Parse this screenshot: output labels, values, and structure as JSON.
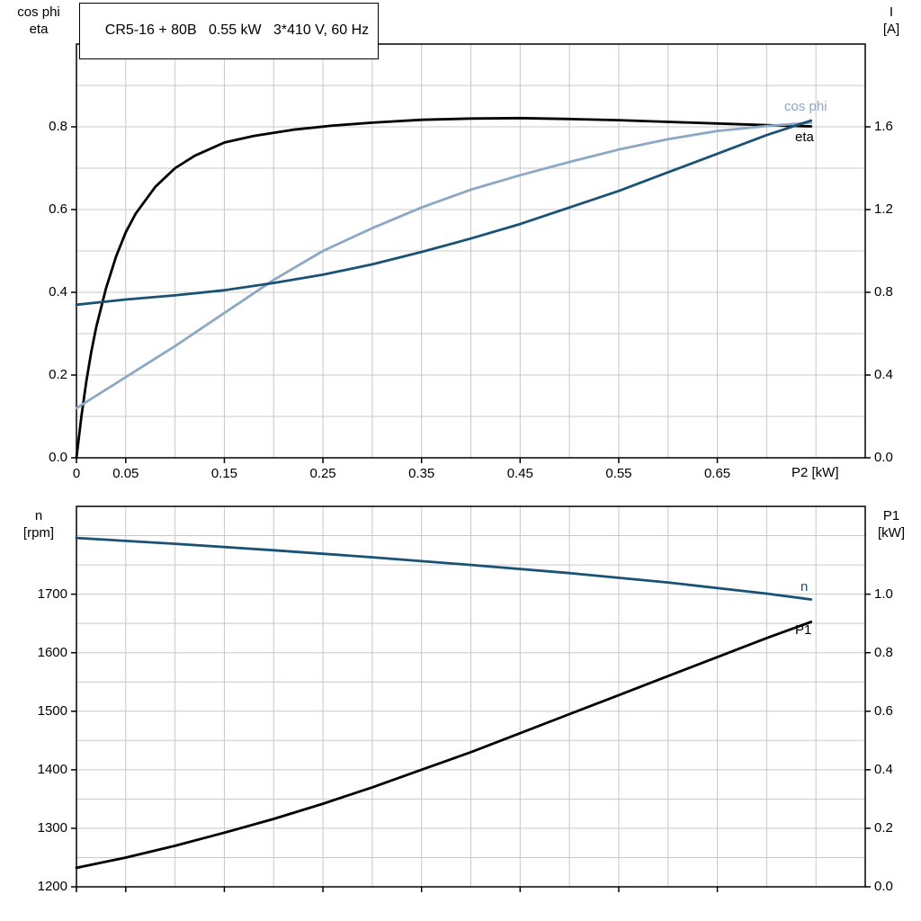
{
  "colors": {
    "background": "#ffffff",
    "axis": "#000000",
    "grid": "#c8c8c8",
    "text": "#000000",
    "black_curve": "#000000",
    "dark_blue": "#1a5276",
    "light_blue": "#8ca8c5"
  },
  "title_box": {
    "text": "CR5-16 + 80B   0.55 kW   3*410 V, 60 Hz"
  },
  "axis_titles": {
    "top_left_line1": "cos phi",
    "top_left_line2": "eta",
    "top_right_line1": "I",
    "top_right_line2": "[A]",
    "bottom_left_line1": "n",
    "bottom_left_line2": "[rpm]",
    "bottom_right_line1": "P1",
    "bottom_right_line2": "[kW]",
    "x_label": "P2 [kW]"
  },
  "curve_labels": {
    "cos_phi": "cos phi",
    "eta": "eta",
    "n": "n",
    "p1": "P1"
  },
  "chart_data": [
    {
      "type": "line",
      "title": "CR5-16 + 80B   0.55 kW   3*410 V, 60 Hz",
      "xlabel": "P2 [kW]",
      "ylabel_left": "cos phi / eta",
      "ylabel_right": "I [A]",
      "xlim": [
        0,
        0.8
      ],
      "ylim_left": [
        0,
        1.0
      ],
      "ylim_right": [
        0,
        2.0
      ],
      "grid": {
        "x_step": 0.05,
        "y_step_left": 0.1
      },
      "x_ticks": [
        0,
        0.05,
        0.15,
        0.25,
        0.35,
        0.45,
        0.55,
        0.65
      ],
      "x_tick_labels": [
        "0",
        "0.05",
        "0.15",
        "0.25",
        "0.35",
        "0.45",
        "0.55",
        "0.65"
      ],
      "y_ticks_left": [
        0,
        0.2,
        0.4,
        0.6,
        0.8
      ],
      "y_tick_labels_left": [
        "0.0",
        "0.2",
        "0.4",
        "0.6",
        "0.8"
      ],
      "y_ticks_right": [
        0,
        0.4,
        0.8,
        1.2,
        1.6
      ],
      "y_tick_labels_right": [
        "0.0",
        "0.4",
        "0.8",
        "1.2",
        "1.6"
      ],
      "series": [
        {
          "name": "eta",
          "axis": "left",
          "color": "black_curve",
          "x": [
            0,
            0.005,
            0.01,
            0.015,
            0.02,
            0.03,
            0.04,
            0.05,
            0.06,
            0.08,
            0.1,
            0.12,
            0.15,
            0.18,
            0.22,
            0.26,
            0.3,
            0.35,
            0.4,
            0.45,
            0.5,
            0.55,
            0.6,
            0.65,
            0.7,
            0.745
          ],
          "values": [
            0,
            0.1,
            0.185,
            0.255,
            0.315,
            0.41,
            0.485,
            0.545,
            0.59,
            0.655,
            0.7,
            0.73,
            0.762,
            0.778,
            0.793,
            0.803,
            0.81,
            0.817,
            0.82,
            0.821,
            0.819,
            0.816,
            0.812,
            0.808,
            0.804,
            0.801
          ]
        },
        {
          "name": "cos-phi",
          "axis": "left",
          "color": "light_blue",
          "x": [
            0,
            0.05,
            0.1,
            0.15,
            0.2,
            0.25,
            0.3,
            0.35,
            0.4,
            0.45,
            0.5,
            0.55,
            0.6,
            0.65,
            0.7,
            0.745
          ],
          "values": [
            0.12,
            0.195,
            0.27,
            0.35,
            0.43,
            0.5,
            0.555,
            0.605,
            0.648,
            0.683,
            0.715,
            0.745,
            0.77,
            0.79,
            0.802,
            0.81
          ]
        },
        {
          "name": "current-I",
          "axis": "right",
          "color": "dark_blue",
          "x": [
            0,
            0.05,
            0.1,
            0.15,
            0.2,
            0.25,
            0.3,
            0.35,
            0.4,
            0.45,
            0.5,
            0.55,
            0.6,
            0.65,
            0.7,
            0.745
          ],
          "values": [
            0.74,
            0.765,
            0.785,
            0.81,
            0.845,
            0.885,
            0.935,
            0.995,
            1.06,
            1.13,
            1.21,
            1.29,
            1.38,
            1.47,
            1.56,
            1.63
          ]
        }
      ]
    },
    {
      "type": "line",
      "title": "",
      "xlabel": "",
      "ylabel_left": "n [rpm]",
      "ylabel_right": "P1 [kW]",
      "xlim": [
        0,
        0.8
      ],
      "ylim_left": [
        1200,
        1850
      ],
      "ylim_right": [
        0,
        1.3
      ],
      "grid": {
        "x_step": 0.05,
        "y_step_left": 50
      },
      "x_ticks": [
        0,
        0.05,
        0.15,
        0.25,
        0.35,
        0.45,
        0.55,
        0.65
      ],
      "x_tick_labels": [],
      "y_ticks_left": [
        1200,
        1300,
        1400,
        1500,
        1600,
        1700
      ],
      "y_tick_labels_left": [
        "1200",
        "1300",
        "1400",
        "1500",
        "1600",
        "1700"
      ],
      "y_ticks_right": [
        0,
        0.2,
        0.4,
        0.6,
        0.8,
        1.0
      ],
      "y_tick_labels_right": [
        "0.0",
        "0.2",
        "0.4",
        "0.6",
        "0.8",
        "1.0"
      ],
      "series": [
        {
          "name": "speed-n",
          "axis": "left",
          "color": "dark_blue",
          "x": [
            0,
            0.1,
            0.2,
            0.3,
            0.4,
            0.5,
            0.6,
            0.7,
            0.745
          ],
          "values": [
            1796,
            1786,
            1775,
            1763,
            1750,
            1736,
            1720,
            1701,
            1691
          ]
        },
        {
          "name": "power-P1",
          "axis": "right",
          "color": "black_curve",
          "x": [
            0,
            0.05,
            0.1,
            0.15,
            0.2,
            0.25,
            0.3,
            0.35,
            0.4,
            0.45,
            0.5,
            0.55,
            0.6,
            0.65,
            0.7,
            0.745
          ],
          "values": [
            0.065,
            0.1,
            0.14,
            0.185,
            0.232,
            0.284,
            0.34,
            0.4,
            0.46,
            0.525,
            0.59,
            0.655,
            0.72,
            0.785,
            0.85,
            0.905
          ]
        }
      ]
    }
  ]
}
